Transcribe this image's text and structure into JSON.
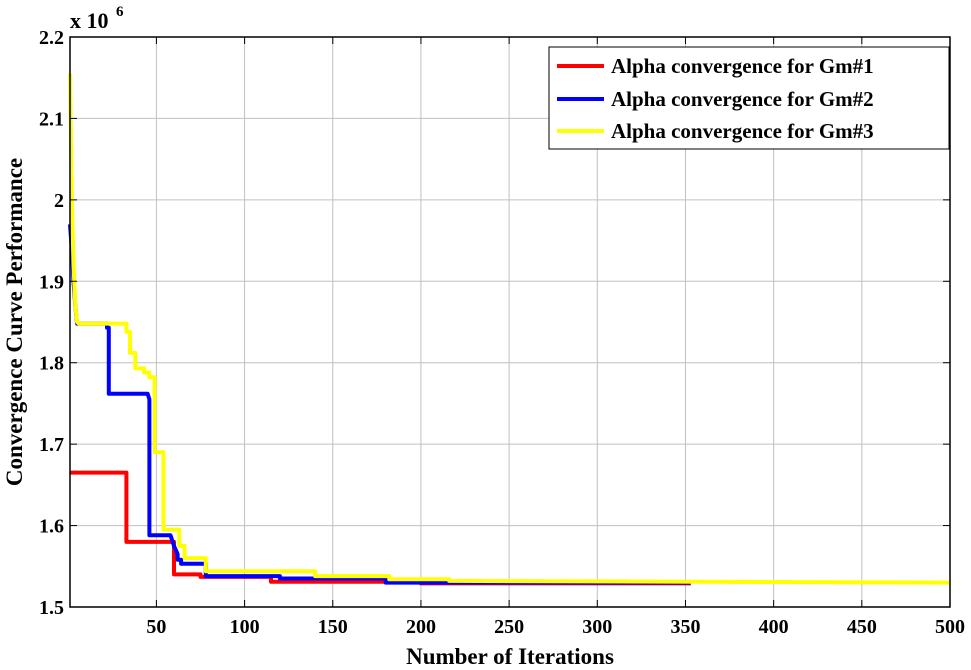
{
  "chart_data": {
    "type": "line",
    "xlabel": "Number of Iterations",
    "ylabel": "Convergence Curve Performance",
    "multiplier_base": "x 10",
    "multiplier_exp": "6",
    "xlim": [
      1,
      500
    ],
    "ylim": [
      1.5,
      2.2
    ],
    "xticks": [
      50,
      100,
      150,
      200,
      250,
      300,
      350,
      400,
      450,
      500
    ],
    "yticks": [
      1.5,
      1.6,
      1.7,
      1.8,
      1.9,
      2.0,
      2.1,
      2.2
    ],
    "ytick_labels": [
      "1.5",
      "1.6",
      "1.7",
      "1.8",
      "1.9",
      "2",
      "2.1",
      "2.2"
    ],
    "grid": true,
    "legend_position": "top-right",
    "series": [
      {
        "name": "Alpha convergence for Gm#1",
        "color": "#ff0000",
        "x": [
          1,
          33,
          33,
          60,
          60,
          62,
          62,
          75,
          75,
          115,
          115,
          200,
          200,
          353
        ],
        "y": [
          1.665,
          1.665,
          1.58,
          1.58,
          1.54,
          1.54,
          1.54,
          1.54,
          1.537,
          1.537,
          1.531,
          1.531,
          1.529,
          1.529
        ]
      },
      {
        "name": "Alpha convergence for Gm#2",
        "color": "#0000ff",
        "x": [
          1,
          2,
          3,
          4,
          5,
          22,
          22,
          23,
          23,
          45,
          46,
          46,
          58,
          60,
          62,
          62,
          64,
          64,
          78,
          78,
          120,
          120,
          180,
          180,
          353
        ],
        "y": [
          1.97,
          1.94,
          1.9,
          1.87,
          1.848,
          1.848,
          1.843,
          1.843,
          1.762,
          1.762,
          1.755,
          1.588,
          1.588,
          1.575,
          1.565,
          1.558,
          1.558,
          1.553,
          1.553,
          1.538,
          1.538,
          1.535,
          1.535,
          1.53,
          1.53
        ]
      },
      {
        "name": "Alpha convergence for Gm#3",
        "color": "#ffff00",
        "x": [
          1,
          2,
          3,
          4,
          5,
          6,
          33,
          33,
          35,
          35,
          38,
          38,
          43,
          43,
          46,
          46,
          49,
          49,
          54,
          54,
          57,
          57,
          63,
          63,
          66,
          66,
          78,
          78,
          140,
          140,
          182,
          182,
          216,
          216,
          500
        ],
        "y": [
          2.155,
          2.0,
          1.92,
          1.87,
          1.85,
          1.848,
          1.848,
          1.838,
          1.838,
          1.812,
          1.812,
          1.793,
          1.793,
          1.788,
          1.788,
          1.782,
          1.782,
          1.69,
          1.69,
          1.595,
          1.595,
          1.595,
          1.595,
          1.575,
          1.575,
          1.56,
          1.56,
          1.544,
          1.544,
          1.538,
          1.538,
          1.534,
          1.534,
          1.532,
          1.53
        ]
      }
    ]
  }
}
